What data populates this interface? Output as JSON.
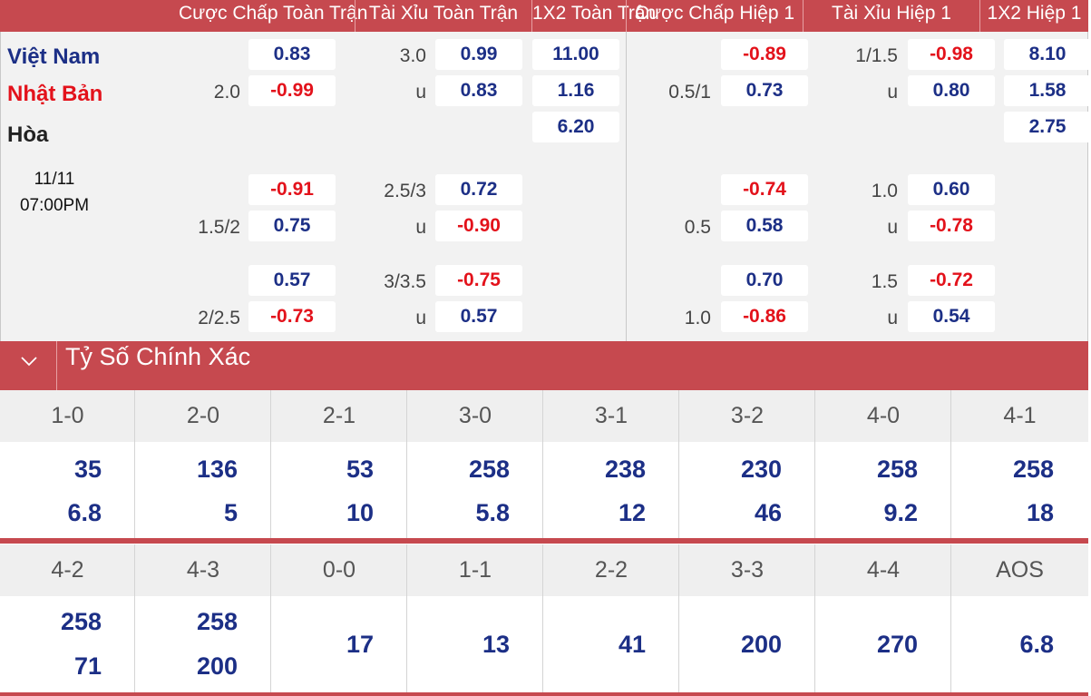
{
  "header": {
    "columns": [
      "Cược Chấp Toàn Trận",
      "Tài Xỉu Toàn Trận",
      "1X2 Toàn Trận",
      "Cược Chấp Hiệp 1",
      "Tài Xỉu Hiệp 1",
      "1X2 Hiệp 1"
    ]
  },
  "match": {
    "home": "Việt Nam",
    "away": "Nhật Bản",
    "draw": "Hòa",
    "date": "11/11",
    "time": "07:00PM"
  },
  "odds": {
    "row1": {
      "ah_ft_home": "0.83",
      "ah_ft_line": "2.0",
      "ah_ft_away": "-0.99",
      "ou_ft_line": "3.0",
      "ou_ft_over": "0.99",
      "ou_ft_u": "u",
      "ou_ft_under": "0.83",
      "x12_ft_home": "11.00",
      "x12_ft_away": "1.16",
      "x12_ft_draw": "6.20",
      "ah_h1_home": "-0.89",
      "ah_h1_line": "0.5/1",
      "ah_h1_away": "0.73",
      "ou_h1_line": "1/1.5",
      "ou_h1_over": "-0.98",
      "ou_h1_u": "u",
      "ou_h1_under": "0.80",
      "x12_h1_home": "8.10",
      "x12_h1_away": "1.58",
      "x12_h1_draw": "2.75"
    },
    "row2": {
      "ah_ft_home": "-0.91",
      "ah_ft_line": "1.5/2",
      "ah_ft_away": "0.75",
      "ou_ft_line": "2.5/3",
      "ou_ft_over": "0.72",
      "ou_ft_u": "u",
      "ou_ft_under": "-0.90",
      "ah_h1_home": "-0.74",
      "ah_h1_line": "0.5",
      "ah_h1_away": "0.58",
      "ou_h1_line": "1.0",
      "ou_h1_over": "0.60",
      "ou_h1_u": "u",
      "ou_h1_under": "-0.78"
    },
    "row3": {
      "ah_ft_home": "0.57",
      "ah_ft_line": "2/2.5",
      "ah_ft_away": "-0.73",
      "ou_ft_line": "3/3.5",
      "ou_ft_over": "-0.75",
      "ou_ft_u": "u",
      "ou_ft_under": "0.57",
      "ah_h1_home": "0.70",
      "ah_h1_line": "1.0",
      "ah_h1_away": "-0.86",
      "ou_h1_line": "1.5",
      "ou_h1_over": "-0.72",
      "ou_h1_u": "u",
      "ou_h1_under": "0.54"
    }
  },
  "correct_score": {
    "title": "Tỷ Số Chính Xác",
    "grid1": {
      "scores": [
        "1-0",
        "2-0",
        "2-1",
        "3-0",
        "3-1",
        "3-2",
        "4-0",
        "4-1"
      ],
      "top": [
        "35",
        "136",
        "53",
        "258",
        "238",
        "230",
        "258",
        "258"
      ],
      "bottom": [
        "6.8",
        "5",
        "10",
        "5.8",
        "12",
        "46",
        "9.2",
        "18"
      ]
    },
    "grid2": {
      "scores": [
        "4-2",
        "4-3",
        "0-0",
        "1-1",
        "2-2",
        "3-3",
        "4-4",
        "AOS"
      ],
      "top": [
        "258",
        "258"
      ],
      "bottom": [
        "71",
        "200"
      ],
      "single": [
        "17",
        "13",
        "41",
        "200",
        "270",
        "6.8"
      ]
    }
  },
  "colors": {
    "accent": "#c6494f",
    "positive": "#1c2f86",
    "negative": "#e3121b"
  },
  "icons": {
    "collapse": "chevron-down-icon"
  }
}
